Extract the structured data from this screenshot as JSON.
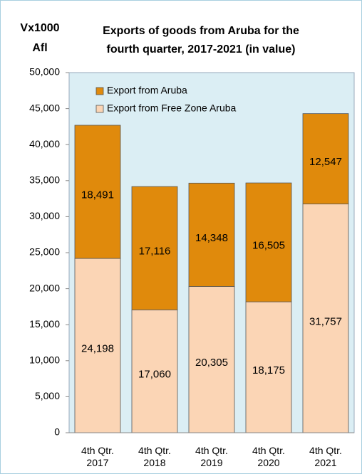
{
  "chart_data": {
    "type": "stacked_bar",
    "title": [
      "Exports of goods from Aruba for the",
      "fourth quarter, 2017-2021 (in value)"
    ],
    "y_axis_label": [
      "Vx1000",
      "Afl"
    ],
    "categories": [
      "4th Qtr. 2017",
      "4th Qtr. 2018",
      "4th Qtr. 2019",
      "4th Qtr. 2020",
      "4th Qtr. 2021"
    ],
    "series": [
      {
        "name": "Export from Free Zone Aruba",
        "color": "#fbd5b5",
        "values": [
          24198,
          17060,
          20305,
          18175,
          31757
        ],
        "value_labels": [
          "24,198",
          "17,060",
          "20,305",
          "18,175",
          "31,757"
        ]
      },
      {
        "name": "Export from Aruba",
        "color": "#e08a0c",
        "values": [
          18491,
          17116,
          14348,
          16505,
          12547
        ],
        "value_labels": [
          "18,491",
          "17,116",
          "14,348",
          "16,505",
          "12,547"
        ]
      }
    ],
    "ylim": [
      0,
      50000
    ],
    "yticks": [
      0,
      {
        "value": 5000,
        "label": "5,000"
      },
      {
        "value": 10000,
        "label": "10,000"
      },
      {
        "value": 15000,
        "label": "15,000"
      },
      {
        "value": 20000,
        "label": "20,000"
      },
      {
        "value": 25000,
        "label": "25,000"
      },
      {
        "value": 30000,
        "label": "30,000"
      },
      {
        "value": 35000,
        "label": "35,000"
      },
      {
        "value": 40000,
        "label": "40,000"
      },
      {
        "value": 45000,
        "label": "45,000"
      },
      {
        "value": 50000,
        "label": "50,000"
      }
    ],
    "legend": "top-left"
  }
}
